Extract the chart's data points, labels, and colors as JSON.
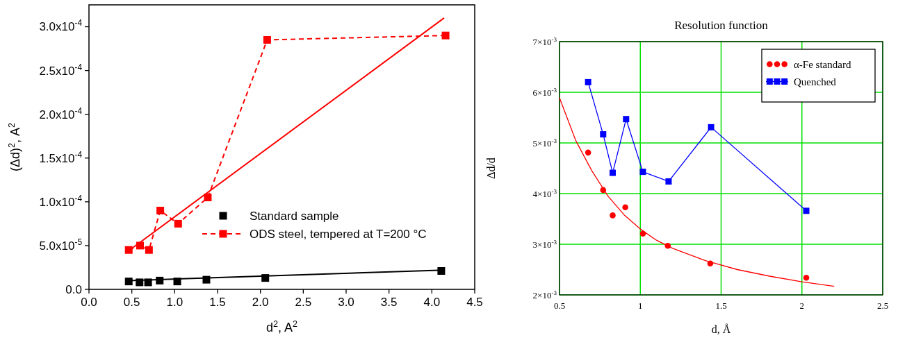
{
  "chart_data": [
    {
      "type": "scatter",
      "xlabel": "d$^{2}$, A$^{2}$",
      "ylabel": "(Δd)$^{2}$, A$^{2}$",
      "xlim": [
        0,
        4.5
      ],
      "ylim": [
        0,
        0.000325
      ],
      "xticks": [
        {
          "value": 0,
          "label": "0.0"
        },
        {
          "value": 0.5,
          "label": "0.5"
        },
        {
          "value": 1,
          "label": "1.0"
        },
        {
          "value": 1.5,
          "label": "1.5"
        },
        {
          "value": 2,
          "label": "2.0"
        },
        {
          "value": 2.5,
          "label": "2.5"
        },
        {
          "value": 3,
          "label": "3.0"
        },
        {
          "value": 3.5,
          "label": "3.5"
        },
        {
          "value": 4,
          "label": "4.0"
        },
        {
          "value": 4.5,
          "label": "4.5"
        }
      ],
      "yticks": [
        {
          "value": 0,
          "label": "0.0"
        },
        {
          "value": 5e-05,
          "label": "5.0x10$^{-5}$"
        },
        {
          "value": 0.0001,
          "label": "1.0x10$^{-4}$"
        },
        {
          "value": 0.00015,
          "label": "1.5x10$^{-4}$"
        },
        {
          "value": 0.0002,
          "label": "2.0x10$^{-4}$"
        },
        {
          "value": 0.00025,
          "label": "2.5x10$^{-4}$"
        },
        {
          "value": 0.0003,
          "label": "3.0x10$^{-4}$"
        }
      ],
      "grid": false,
      "legend": "bottom right",
      "series": [
        {
          "name": "Standard sample",
          "marker": "square",
          "color": "#000000",
          "x": [
            0.464,
            0.59,
            0.69,
            0.825,
            1.03,
            1.37,
            2.057,
            4.11
          ],
          "values": [
            9e-06,
            8e-06,
            8e-06,
            1e-05,
            9e-06,
            1.1e-05,
            1.3e-05,
            2.1e-05
          ]
        },
        {
          "name": "ODS steel, tempered at T=200 °C",
          "type": "line",
          "marker": "square",
          "line_style": "dashed",
          "color": "#ff0000",
          "x": [
            0.464,
            0.596,
            0.7,
            0.832,
            1.04,
            1.386,
            2.079,
            4.16
          ],
          "values": [
            4.5e-05,
            5e-05,
            4.5e-05,
            9e-05,
            7.5e-05,
            0.000105,
            0.000285,
            0.00029
          ]
        },
        {
          "type": "line",
          "marker": "none",
          "line_style": "solid",
          "color": "#000000",
          "x": [
            0.46,
            4.14
          ],
          "values": [
            1e-05,
            2.2e-05
          ]
        },
        {
          "type": "line",
          "marker": "none",
          "line_style": "solid",
          "color": "#ff0000",
          "x": [
            0.475,
            4.143
          ],
          "values": [
            4.5e-05,
            0.00031
          ]
        }
      ]
    },
    {
      "type": "scatter",
      "title": "Resolution function",
      "xlabel": "d, Å",
      "ylabel": "Δd/d",
      "xlim": [
        0.5,
        2.5
      ],
      "ylim": [
        0.002,
        0.007
      ],
      "xticks": [
        0.5,
        1,
        1.5,
        2,
        2.5
      ],
      "yticks": [
        {
          "value": 0.002,
          "label": "2×10$^{-3}$"
        },
        {
          "value": 0.003,
          "label": "3×10$^{-3}$"
        },
        {
          "value": 0.004,
          "label": "4×10$^{-3}$"
        },
        {
          "value": 0.005,
          "label": "5×10$^{-3}$"
        },
        {
          "value": 0.006,
          "label": "6×10$^{-3}$"
        },
        {
          "value": 0.007,
          "label": "7×10$^{-3}$"
        }
      ],
      "grid": true,
      "legend": "top right",
      "series": [
        {
          "name": "α-Fe standard",
          "marker": "circle",
          "color": "#ff0000",
          "x": [
            0.677,
            0.77,
            0.829,
            0.907,
            1.016,
            1.17,
            1.433,
            2.027
          ],
          "values": [
            0.00481,
            0.00407,
            0.00357,
            0.00373,
            0.00321,
            0.00297,
            0.00262,
            0.00234
          ]
        },
        {
          "name": "Quenched",
          "type": "line",
          "marker": "square",
          "line_style": "solid",
          "color": "#0000ff",
          "x": [
            0.677,
            0.77,
            0.829,
            0.912,
            1.016,
            1.175,
            1.438,
            2.027
          ],
          "values": [
            0.0062,
            0.00517,
            0.00441,
            0.00547,
            0.00443,
            0.00424,
            0.00531,
            0.00366
          ]
        },
        {
          "type": "line",
          "marker": "none",
          "line_style": "solid",
          "color": "#ff0000",
          "x": [
            0.5,
            0.6,
            0.7,
            0.8,
            0.9,
            1.0,
            1.1,
            1.2,
            1.4,
            1.6,
            1.8,
            2.0,
            2.2
          ],
          "values": [
            0.00589,
            0.00505,
            0.00445,
            0.00395,
            0.00358,
            0.0033,
            0.00308,
            0.00292,
            0.00268,
            0.0025,
            0.00237,
            0.00226,
            0.00217
          ]
        }
      ]
    }
  ]
}
